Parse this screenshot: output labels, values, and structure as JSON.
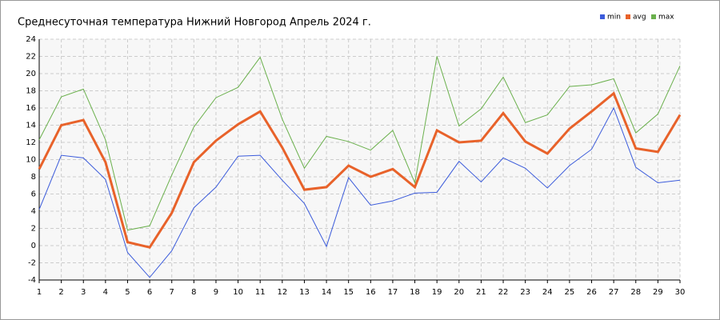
{
  "chart_data": {
    "type": "line",
    "title": "Среднесуточная температура Нижний Новгород  Апрель 2024 г.",
    "x": [
      1,
      2,
      3,
      4,
      5,
      6,
      7,
      8,
      9,
      10,
      11,
      12,
      13,
      14,
      15,
      16,
      17,
      18,
      19,
      20,
      21,
      22,
      23,
      24,
      25,
      26,
      27,
      28,
      29,
      30
    ],
    "xlim": [
      1,
      30
    ],
    "xticks": [
      1,
      2,
      3,
      4,
      5,
      6,
      7,
      8,
      9,
      10,
      11,
      12,
      13,
      14,
      15,
      16,
      17,
      18,
      19,
      20,
      21,
      22,
      23,
      24,
      25,
      26,
      27,
      28,
      29,
      30
    ],
    "ylim": [
      -4,
      24
    ],
    "yticks": [
      -4,
      -2,
      0,
      2,
      4,
      6,
      8,
      10,
      12,
      14,
      16,
      18,
      20,
      22,
      24
    ],
    "grid": true,
    "legend": "top-right",
    "series": [
      {
        "name": "min",
        "color": "#3b5bdb",
        "values": [
          4.2,
          10.5,
          10.2,
          7.7,
          -0.8,
          -3.7,
          -0.6,
          4.4,
          6.8,
          10.4,
          10.5,
          7.6,
          4.9,
          -0.1,
          7.9,
          4.7,
          5.2,
          6.1,
          6.2,
          9.8,
          7.4,
          10.2,
          9.0,
          6.7,
          9.3,
          11.2,
          16.0,
          9.1,
          7.3,
          7.6
        ]
      },
      {
        "name": "avg",
        "color": "#e8622a",
        "values": [
          8.9,
          14.0,
          14.6,
          9.7,
          0.4,
          -0.2,
          3.8,
          9.7,
          12.2,
          14.1,
          15.6,
          11.4,
          6.5,
          6.8,
          9.3,
          8.0,
          8.9,
          6.8,
          13.4,
          12.0,
          12.2,
          15.4,
          12.1,
          10.7,
          13.6,
          15.6,
          17.7,
          11.3,
          10.9,
          15.2
        ]
      },
      {
        "name": "max",
        "color": "#6ab04c",
        "values": [
          12.3,
          17.3,
          18.2,
          12.3,
          1.8,
          2.3,
          8.2,
          13.8,
          17.2,
          18.4,
          21.9,
          14.7,
          9.0,
          12.7,
          12.1,
          11.1,
          13.4,
          7.3,
          22.0,
          13.9,
          15.9,
          19.6,
          14.3,
          15.2,
          18.5,
          18.7,
          19.4,
          13.1,
          15.3,
          20.9
        ]
      }
    ]
  }
}
